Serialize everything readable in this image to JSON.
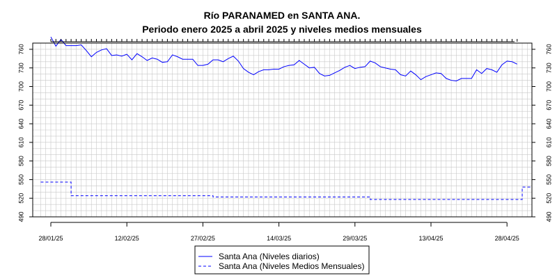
{
  "title": "Río PARANAMED en SANTA ANA.",
  "subtitle": "Periodo enero 2025 a abril 2025 y niveles medios mensuales",
  "colors": {
    "series": "#0000ff",
    "grid": "#c8c8c8",
    "axis": "#000000"
  },
  "chart_data": {
    "type": "line",
    "title": "Río PARANAMED en SANTA ANA.",
    "subtitle": "Periodo enero 2025 a abril 2025 y niveles medios mensuales",
    "xlabel": "",
    "ylabel": "",
    "x_range": [
      "2025-01-28",
      "2025-05-01"
    ],
    "ylim": [
      490,
      770
    ],
    "y_ticks": [
      490,
      520,
      550,
      580,
      610,
      640,
      670,
      700,
      730,
      760
    ],
    "x_tick_labels": [
      {
        "date": "2025-01-28",
        "label": "28/01/25"
      },
      {
        "date": "2025-02-12",
        "label": "12/02/25"
      },
      {
        "date": "2025-02-27",
        "label": "27/02/25"
      },
      {
        "date": "2025-03-14",
        "label": "14/03/25"
      },
      {
        "date": "2025-03-29",
        "label": "29/03/25"
      },
      {
        "date": "2025-04-13",
        "label": "13/04/25"
      },
      {
        "date": "2025-04-28",
        "label": "28/04/25"
      }
    ],
    "grid": true,
    "right_axis": true,
    "legend_position": "bottom-center",
    "series": [
      {
        "name": "Santa Ana (Niveles diarios)",
        "style": "solid",
        "color": "#0000ff",
        "points": [
          [
            "2025-01-28",
            780
          ],
          [
            "2025-01-29",
            765
          ],
          [
            "2025-01-30",
            776
          ],
          [
            "2025-01-31",
            766
          ],
          [
            "2025-02-01",
            766
          ],
          [
            "2025-02-02",
            766
          ],
          [
            "2025-02-03",
            767
          ],
          [
            "2025-02-04",
            758
          ],
          [
            "2025-02-05",
            748
          ],
          [
            "2025-02-06",
            755
          ],
          [
            "2025-02-07",
            759
          ],
          [
            "2025-02-08",
            761
          ],
          [
            "2025-02-09",
            750
          ],
          [
            "2025-02-10",
            751
          ],
          [
            "2025-02-11",
            749
          ],
          [
            "2025-02-12",
            752
          ],
          [
            "2025-02-13",
            743
          ],
          [
            "2025-02-14",
            753
          ],
          [
            "2025-02-15",
            748
          ],
          [
            "2025-02-16",
            742
          ],
          [
            "2025-02-17",
            746
          ],
          [
            "2025-02-18",
            744
          ],
          [
            "2025-02-19",
            739
          ],
          [
            "2025-02-20",
            740
          ],
          [
            "2025-02-21",
            751
          ],
          [
            "2025-02-22",
            748
          ],
          [
            "2025-02-23",
            744
          ],
          [
            "2025-02-24",
            744
          ],
          [
            "2025-02-25",
            744
          ],
          [
            "2025-02-26",
            734
          ],
          [
            "2025-02-27",
            734
          ],
          [
            "2025-02-28",
            736
          ],
          [
            "2025-03-01",
            743
          ],
          [
            "2025-03-02",
            743
          ],
          [
            "2025-03-03",
            740
          ],
          [
            "2025-03-04",
            745
          ],
          [
            "2025-03-05",
            749
          ],
          [
            "2025-03-06",
            741
          ],
          [
            "2025-03-07",
            729
          ],
          [
            "2025-03-08",
            723
          ],
          [
            "2025-03-09",
            719
          ],
          [
            "2025-03-10",
            724
          ],
          [
            "2025-03-11",
            727
          ],
          [
            "2025-03-12",
            727
          ],
          [
            "2025-03-13",
            728
          ],
          [
            "2025-03-14",
            728
          ],
          [
            "2025-03-15",
            732
          ],
          [
            "2025-03-16",
            734
          ],
          [
            "2025-03-17",
            735
          ],
          [
            "2025-03-18",
            742
          ],
          [
            "2025-03-19",
            736
          ],
          [
            "2025-03-20",
            730
          ],
          [
            "2025-03-21",
            731
          ],
          [
            "2025-03-22",
            721
          ],
          [
            "2025-03-23",
            717
          ],
          [
            "2025-03-24",
            718
          ],
          [
            "2025-03-25",
            722
          ],
          [
            "2025-03-26",
            726
          ],
          [
            "2025-03-27",
            731
          ],
          [
            "2025-03-28",
            734
          ],
          [
            "2025-03-29",
            729
          ],
          [
            "2025-03-30",
            731
          ],
          [
            "2025-03-31",
            732
          ],
          [
            "2025-04-01",
            741
          ],
          [
            "2025-04-02",
            738
          ],
          [
            "2025-04-03",
            732
          ],
          [
            "2025-04-04",
            730
          ],
          [
            "2025-04-05",
            728
          ],
          [
            "2025-04-06",
            727
          ],
          [
            "2025-04-07",
            719
          ],
          [
            "2025-04-08",
            717
          ],
          [
            "2025-04-09",
            725
          ],
          [
            "2025-04-10",
            719
          ],
          [
            "2025-04-11",
            711
          ],
          [
            "2025-04-12",
            716
          ],
          [
            "2025-04-13",
            719
          ],
          [
            "2025-04-14",
            722
          ],
          [
            "2025-04-15",
            721
          ],
          [
            "2025-04-16",
            713
          ],
          [
            "2025-04-17",
            710
          ],
          [
            "2025-04-18",
            709
          ],
          [
            "2025-04-19",
            713
          ],
          [
            "2025-04-20",
            713
          ],
          [
            "2025-04-21",
            713
          ],
          [
            "2025-04-22",
            727
          ],
          [
            "2025-04-23",
            721
          ],
          [
            "2025-04-24",
            729
          ],
          [
            "2025-04-25",
            727
          ],
          [
            "2025-04-26",
            723
          ],
          [
            "2025-04-27",
            735
          ],
          [
            "2025-04-28",
            741
          ],
          [
            "2025-04-29",
            740
          ],
          [
            "2025-04-30",
            736
          ]
        ]
      },
      {
        "name": "Santa Ana (Niveles Medios Mensuales)",
        "style": "dashed",
        "color": "#0000ff",
        "steps": [
          {
            "from": "2025-01-26",
            "to": "2025-02-01",
            "value": 546
          },
          {
            "from": "2025-02-01",
            "to": "2025-03-01",
            "value": 524
          },
          {
            "from": "2025-03-01",
            "to": "2025-04-01",
            "value": 522
          },
          {
            "from": "2025-04-01",
            "to": "2025-05-01",
            "value": 518
          },
          {
            "from": "2025-05-01",
            "to": "2025-05-03",
            "value": 538
          }
        ]
      }
    ]
  }
}
